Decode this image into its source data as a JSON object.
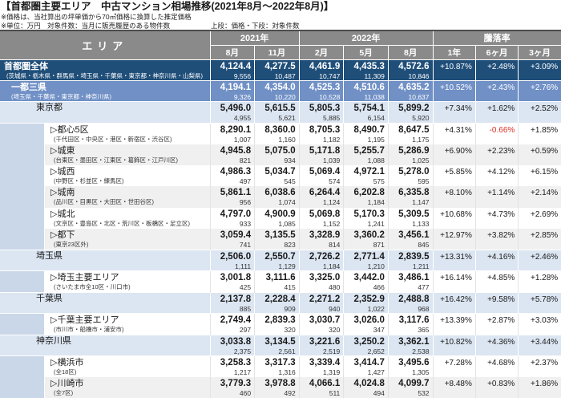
{
  "title": "【首都圏主要エリア　中古マンション相場推移(2021年8月～2022年8月)】",
  "notes": [
    "※価格は、当社算出の坪単価から70㎡価格に換算した推定価格",
    "※単位：万円　対象件数：当月に販売履歴のある物件数"
  ],
  "legend": "上段：価格・下段：対象件数",
  "header": {
    "area_label": "エリア",
    "groups": [
      {
        "label": "2021年",
        "months": [
          "8月",
          "11月"
        ]
      },
      {
        "label": "2022年",
        "months": [
          "2月",
          "5月",
          "8月"
        ]
      },
      {
        "label": "騰落率",
        "months": [
          "1年",
          "6ヶ月",
          "3ヶ月"
        ]
      }
    ]
  },
  "rows": [
    {
      "type": "total",
      "name": "首都圏全体",
      "sub": "(茨城県・栃木県・群馬県・埼玉県・千葉県・東京都・神奈川県・山梨県)",
      "prices": [
        "4,124.4",
        "4,277.5",
        "4,461.9",
        "4,435.3",
        "4,572.6"
      ],
      "counts": [
        "9,556",
        "10,487",
        "10,747",
        "11,309",
        "10,846"
      ],
      "rates": [
        "+10.87%",
        "+2.48%",
        "+3.09%"
      ]
    },
    {
      "type": "metro",
      "name": "一都三県",
      "sub": "(埼玉県・千葉県・東京都・神奈川県)",
      "prices": [
        "4,194.1",
        "4,354.0",
        "4,525.3",
        "4,510.6",
        "4,635.2"
      ],
      "counts": [
        "9,326",
        "10,220",
        "10,528",
        "11,038",
        "10,637"
      ],
      "rates": [
        "+10.52%",
        "+2.43%",
        "+2.76%"
      ]
    },
    {
      "type": "pref",
      "name": "東京都",
      "sub": "",
      "prices": [
        "5,496.0",
        "5,615.5",
        "5,805.3",
        "5,754.1",
        "5,899.2"
      ],
      "counts": [
        "4,955",
        "5,621",
        "5,885",
        "6,154",
        "5,920"
      ],
      "rates": [
        "+7.34%",
        "+1.62%",
        "+2.52%"
      ]
    },
    {
      "type": "sub",
      "alt": false,
      "name": "▷都心5区",
      "sub": "(千代田区・中央区・港区・新宿区・渋谷区)",
      "prices": [
        "8,290.1",
        "8,360.0",
        "8,705.3",
        "8,490.7",
        "8,647.5"
      ],
      "counts": [
        "1,007",
        "1,160",
        "1,182",
        "1,195",
        "1,175"
      ],
      "rates": [
        "+4.31%",
        "-0.66%",
        "+1.85%"
      ]
    },
    {
      "type": "sub",
      "alt": true,
      "name": "▷城東",
      "sub": "(台東区・墨田区・江東区・葛飾区・江戸川区)",
      "prices": [
        "4,945.8",
        "5,075.0",
        "5,171.8",
        "5,255.7",
        "5,286.9"
      ],
      "counts": [
        "821",
        "934",
        "1,039",
        "1,088",
        "1,025"
      ],
      "rates": [
        "+6.90%",
        "+2.23%",
        "+0.59%"
      ]
    },
    {
      "type": "sub",
      "alt": false,
      "name": "▷城西",
      "sub": "(中野区・杉並区・練馬区)",
      "prices": [
        "4,986.3",
        "5,034.7",
        "5,069.4",
        "4,972.1",
        "5,278.0"
      ],
      "counts": [
        "497",
        "545",
        "574",
        "575",
        "595"
      ],
      "rates": [
        "+5.85%",
        "+4.12%",
        "+6.15%"
      ]
    },
    {
      "type": "sub",
      "alt": true,
      "name": "▷城南",
      "sub": "(品川区・目黒区・大田区・世田谷区)",
      "prices": [
        "5,861.1",
        "6,038.6",
        "6,264.4",
        "6,202.8",
        "6,335.8"
      ],
      "counts": [
        "956",
        "1,074",
        "1,124",
        "1,184",
        "1,147"
      ],
      "rates": [
        "+8.10%",
        "+1.14%",
        "+2.14%"
      ]
    },
    {
      "type": "sub",
      "alt": false,
      "name": "▷城北",
      "sub": "(文京区・豊島区・北区・荒川区・板橋区・足立区)",
      "prices": [
        "4,797.0",
        "4,900.9",
        "5,069.8",
        "5,170.3",
        "5,309.5"
      ],
      "counts": [
        "933",
        "1,085",
        "1,152",
        "1,241",
        "1,133"
      ],
      "rates": [
        "+10.68%",
        "+4.73%",
        "+2.69%"
      ]
    },
    {
      "type": "sub",
      "alt": true,
      "name": "▷都下",
      "sub": "(東京23区外)",
      "prices": [
        "3,059.4",
        "3,135.5",
        "3,328.9",
        "3,360.2",
        "3,456.1"
      ],
      "counts": [
        "741",
        "823",
        "814",
        "871",
        "845"
      ],
      "rates": [
        "+12.97%",
        "+3.82%",
        "+2.85%"
      ]
    },
    {
      "type": "pref",
      "name": "埼玉県",
      "sub": "",
      "prices": [
        "2,506.0",
        "2,550.7",
        "2,726.2",
        "2,771.4",
        "2,839.5"
      ],
      "counts": [
        "1,111",
        "1,129",
        "1,184",
        "1,210",
        "1,211"
      ],
      "rates": [
        "+13.31%",
        "+4.16%",
        "+2.46%"
      ]
    },
    {
      "type": "sub",
      "alt": false,
      "name": "▷埼玉主要エリア",
      "sub": "(さいたま市全10区・川口市)",
      "prices": [
        "3,001.8",
        "3,111.6",
        "3,325.0",
        "3,442.0",
        "3,486.1"
      ],
      "counts": [
        "425",
        "415",
        "480",
        "466",
        "477"
      ],
      "rates": [
        "+16.14%",
        "+4.85%",
        "+1.28%"
      ]
    },
    {
      "type": "pref",
      "name": "千葉県",
      "sub": "",
      "prices": [
        "2,137.8",
        "2,228.4",
        "2,271.2",
        "2,352.9",
        "2,488.8"
      ],
      "counts": [
        "885",
        "909",
        "940",
        "1,022",
        "968"
      ],
      "rates": [
        "+16.42%",
        "+9.58%",
        "+5.78%"
      ]
    },
    {
      "type": "sub",
      "alt": false,
      "name": "▷千葉主要エリア",
      "sub": "(市川市・船橋市・浦安市)",
      "prices": [
        "2,749.4",
        "2,839.3",
        "3,030.7",
        "3,026.0",
        "3,117.6"
      ],
      "counts": [
        "297",
        "320",
        "320",
        "347",
        "365"
      ],
      "rates": [
        "+13.39%",
        "+2.87%",
        "+3.03%"
      ]
    },
    {
      "type": "pref",
      "name": "神奈川県",
      "sub": "",
      "prices": [
        "3,033.8",
        "3,134.5",
        "3,221.6",
        "3,250.2",
        "3,362.1"
      ],
      "counts": [
        "2,375",
        "2,561",
        "2,519",
        "2,652",
        "2,538"
      ],
      "rates": [
        "+10.82%",
        "+4.36%",
        "+3.44%"
      ]
    },
    {
      "type": "sub",
      "alt": false,
      "name": "▷横浜市",
      "sub": "(全18区)",
      "prices": [
        "3,258.3",
        "3,317.3",
        "3,339.4",
        "3,414.7",
        "3,495.6"
      ],
      "counts": [
        "1,217",
        "1,316",
        "1,319",
        "1,427",
        "1,305"
      ],
      "rates": [
        "+7.28%",
        "+4.68%",
        "+2.37%"
      ]
    },
    {
      "type": "sub",
      "alt": true,
      "name": "▷川崎市",
      "sub": "(全7区)",
      "prices": [
        "3,779.3",
        "3,978.8",
        "4,066.1",
        "4,024.8",
        "4,099.7"
      ],
      "counts": [
        "460",
        "492",
        "511",
        "494",
        "532"
      ],
      "rates": [
        "+8.48%",
        "+0.83%",
        "+1.86%"
      ]
    }
  ],
  "colors": {
    "header_bg": "#8a8a8a",
    "total_row_bg": "#1f4e79",
    "metro_row_bg": "#7090c6",
    "pref_row_bg": "#dce6f2",
    "indent_strip_bg": "#c9d7e8",
    "alt_row_bg": "#f0f0f0",
    "negative_rate": "#d93025"
  }
}
